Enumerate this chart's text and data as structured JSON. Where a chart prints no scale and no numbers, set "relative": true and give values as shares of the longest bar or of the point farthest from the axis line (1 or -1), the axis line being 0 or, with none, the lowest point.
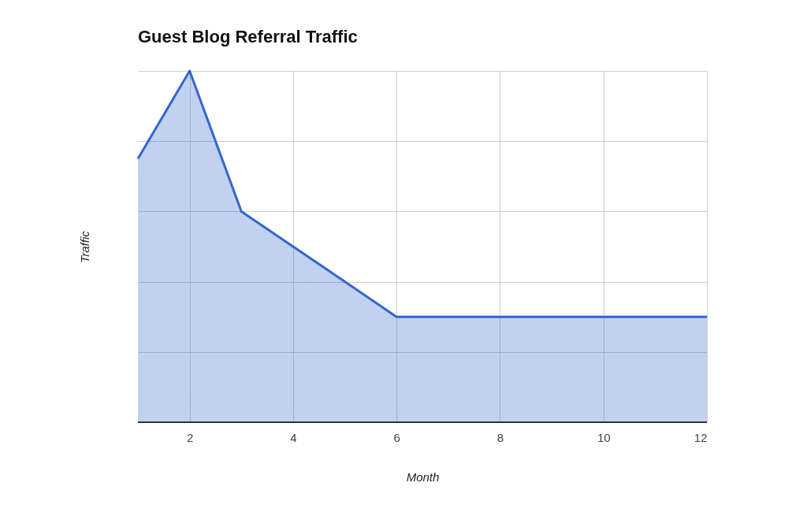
{
  "chart_data": {
    "type": "area",
    "title": "Guest Blog Referral Traffic",
    "xlabel": "Month",
    "ylabel": "Traffic",
    "relative": true,
    "x": [
      1,
      2,
      3,
      4,
      5,
      6,
      7,
      8,
      9,
      10,
      11,
      12
    ],
    "series": [
      {
        "color": "#3366cc",
        "values": [
          0.75,
          1,
          0.6,
          0.5,
          0.4,
          0.3,
          0.3,
          0.3,
          0.3,
          0.3,
          0.3,
          0.3
        ]
      }
    ],
    "xlim": [
      1,
      12
    ],
    "xticks": [
      2,
      4,
      6,
      8,
      10,
      12
    ],
    "grid": true,
    "marker": "none",
    "line_style": "solid"
  }
}
